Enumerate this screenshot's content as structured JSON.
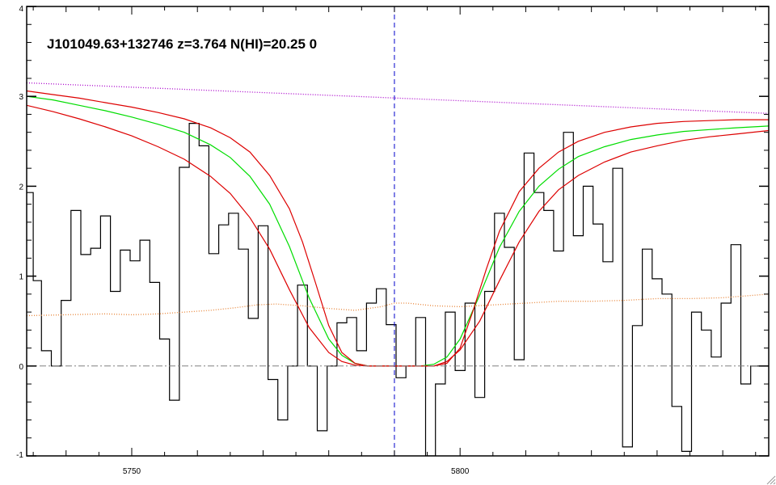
{
  "chart_data": {
    "type": "line",
    "title": "J101049.63+132746 z=3.764 N(HI)=20.25 0",
    "xlabel": "",
    "ylabel": "",
    "xlim": [
      5734,
      5847
    ],
    "ylim": [
      -1,
      4
    ],
    "x_tick_labels": [
      {
        "value": 5750,
        "label": "5750"
      },
      {
        "value": 5800,
        "label": "5800"
      }
    ],
    "y_tick_labels": [
      {
        "value": -1,
        "label": "-1"
      },
      {
        "value": 0,
        "label": "0"
      },
      {
        "value": 1,
        "label": "1"
      },
      {
        "value": 2,
        "label": "2"
      },
      {
        "value": 3,
        "label": "3"
      },
      {
        "value": 4,
        "label": "4"
      }
    ],
    "center_wavelength": 5790,
    "series": [
      {
        "style": "steps",
        "color": "#000000",
        "x": [
          5734.5,
          5735.5,
          5737,
          5738.5,
          5740,
          5741.5,
          5743,
          5744.5,
          5746,
          5747.5,
          5749,
          5750.5,
          5752,
          5753.5,
          5755,
          5756.5,
          5758,
          5759.5,
          5761,
          5762.5,
          5764,
          5765.5,
          5767,
          5768.5,
          5770,
          5771.5,
          5773,
          5774.5,
          5776,
          5777.5,
          5779,
          5780.5,
          5782,
          5783.5,
          5785,
          5786.5,
          5788,
          5789.5,
          5791,
          5792.5,
          5794,
          5795.5,
          5797,
          5798.5,
          5800,
          5801.5,
          5803,
          5804.5,
          5806,
          5807.5,
          5809,
          5810.5,
          5812,
          5813.5,
          5815,
          5816.5,
          5818,
          5819.5,
          5821,
          5822.5,
          5824,
          5825.5,
          5827,
          5828.5,
          5830,
          5831.5,
          5833,
          5834.5,
          5836,
          5837.5,
          5839,
          5840.5,
          5842,
          5843.5,
          5845,
          5846.5
        ],
        "y": [
          1.93,
          0.95,
          0.17,
          0.0,
          0.73,
          1.73,
          1.24,
          1.31,
          1.67,
          0.83,
          1.29,
          1.17,
          1.4,
          0.93,
          0.3,
          -0.38,
          2.21,
          2.7,
          2.45,
          1.25,
          1.57,
          1.7,
          1.3,
          0.53,
          1.56,
          -0.15,
          -0.6,
          0.0,
          0.9,
          0.0,
          -0.72,
          0.0,
          0.48,
          0.54,
          0.17,
          0.7,
          0.86,
          0.46,
          -0.13,
          0.0,
          0.54,
          -1.0,
          -0.2,
          0.6,
          -0.05,
          0.7,
          -0.35,
          0.83,
          1.7,
          1.32,
          0.07,
          2.37,
          1.93,
          1.73,
          1.28,
          2.6,
          1.45,
          2.0,
          1.58,
          1.16,
          2.2,
          -0.9,
          0.45,
          1.3,
          0.97,
          0.8,
          -0.45,
          -0.95,
          0.6,
          0.4,
          0.1,
          0.7,
          1.35,
          -0.2,
          0.0,
          0.0
        ]
      },
      {
        "style": "smooth",
        "color": "#00dd00",
        "x": [
          5734,
          5738,
          5742,
          5746,
          5750,
          5754,
          5758,
          5762,
          5765,
          5768,
          5771,
          5774,
          5777,
          5780,
          5782,
          5784,
          5786,
          5788,
          5790,
          5792,
          5794,
          5796,
          5798,
          5800,
          5803,
          5806,
          5809,
          5812,
          5815,
          5818,
          5822,
          5826,
          5830,
          5834,
          5838,
          5842,
          5847
        ],
        "y": [
          3.0,
          2.96,
          2.9,
          2.84,
          2.77,
          2.69,
          2.6,
          2.46,
          2.32,
          2.11,
          1.8,
          1.33,
          0.76,
          0.3,
          0.12,
          0.03,
          0.0,
          0.0,
          0.0,
          0.0,
          0.0,
          0.02,
          0.1,
          0.3,
          0.79,
          1.32,
          1.72,
          2.0,
          2.19,
          2.33,
          2.44,
          2.52,
          2.57,
          2.61,
          2.63,
          2.65,
          2.67
        ]
      },
      {
        "style": "smooth",
        "color": "#dd0000",
        "x": [
          5734,
          5738,
          5742,
          5746,
          5750,
          5754,
          5758,
          5762,
          5765,
          5768,
          5771,
          5774,
          5776,
          5778,
          5780,
          5782,
          5784,
          5786,
          5788,
          5790,
          5792,
          5794,
          5796,
          5798,
          5800,
          5802,
          5804,
          5806,
          5809,
          5812,
          5815,
          5818,
          5822,
          5826,
          5830,
          5834,
          5838,
          5842,
          5847
        ],
        "y": [
          3.06,
          3.02,
          2.98,
          2.93,
          2.88,
          2.82,
          2.75,
          2.65,
          2.54,
          2.38,
          2.12,
          1.75,
          1.38,
          0.92,
          0.45,
          0.15,
          0.03,
          0.0,
          0.0,
          0.0,
          0.0,
          0.0,
          0.0,
          0.03,
          0.2,
          0.62,
          1.08,
          1.5,
          1.94,
          2.2,
          2.38,
          2.5,
          2.6,
          2.66,
          2.7,
          2.72,
          2.73,
          2.74,
          2.74
        ]
      },
      {
        "style": "smooth",
        "color": "#dd0000",
        "x": [
          5734,
          5738,
          5742,
          5746,
          5750,
          5754,
          5758,
          5762,
          5765,
          5768,
          5771,
          5774,
          5777,
          5780,
          5782,
          5784,
          5786,
          5788,
          5790,
          5792,
          5794,
          5796,
          5798,
          5800,
          5803,
          5806,
          5809,
          5812,
          5815,
          5818,
          5822,
          5826,
          5830,
          5834,
          5838,
          5842,
          5847
        ],
        "y": [
          2.9,
          2.83,
          2.75,
          2.66,
          2.56,
          2.44,
          2.3,
          2.11,
          1.92,
          1.65,
          1.3,
          0.85,
          0.43,
          0.15,
          0.05,
          0.01,
          0.0,
          0.0,
          0.0,
          0.0,
          0.0,
          0.0,
          0.05,
          0.18,
          0.5,
          0.95,
          1.38,
          1.72,
          1.96,
          2.12,
          2.27,
          2.38,
          2.45,
          2.51,
          2.55,
          2.58,
          2.62
        ]
      },
      {
        "style": "dotted",
        "color": "#aa00cc",
        "x": [
          5734,
          5847
        ],
        "y": [
          3.15,
          2.81
        ]
      },
      {
        "style": "dotted",
        "color": "#e8863a",
        "x": [
          5734,
          5740,
          5746,
          5750,
          5754,
          5758,
          5762,
          5766,
          5769,
          5772,
          5776,
          5780,
          5784,
          5788,
          5790,
          5792,
          5796,
          5800,
          5805,
          5810,
          5815,
          5820,
          5825,
          5830,
          5835,
          5840,
          5847
        ],
        "y": [
          0.56,
          0.57,
          0.58,
          0.57,
          0.58,
          0.6,
          0.62,
          0.65,
          0.68,
          0.69,
          0.67,
          0.64,
          0.62,
          0.66,
          0.7,
          0.7,
          0.67,
          0.66,
          0.68,
          0.7,
          0.72,
          0.72,
          0.73,
          0.75,
          0.75,
          0.76,
          0.8
        ]
      }
    ],
    "reference_lines": [
      {
        "orientation": "vertical",
        "value": 5790,
        "color": "#0000cc",
        "style": "dashed"
      },
      {
        "orientation": "horizontal",
        "value": 0,
        "color": "#808080",
        "style": "dash-dot"
      }
    ]
  }
}
